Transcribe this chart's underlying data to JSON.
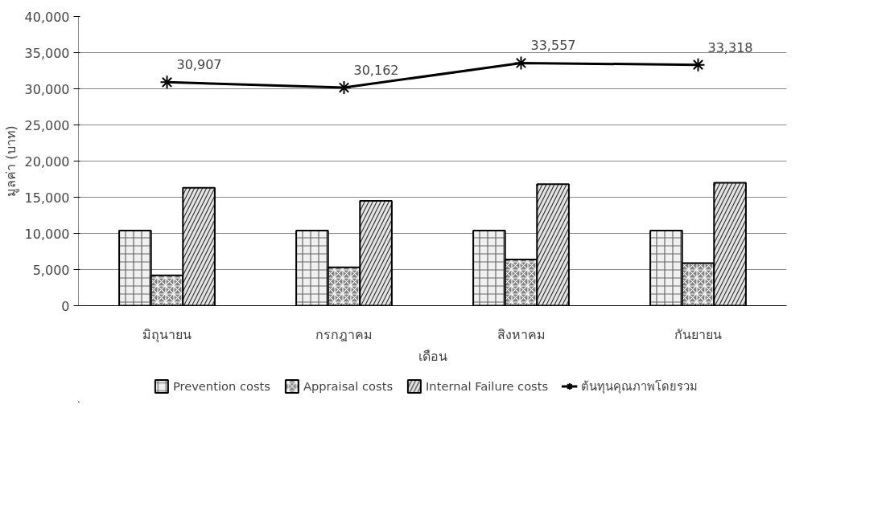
{
  "chart_data": {
    "type": "bar",
    "xlabel": "เดือน",
    "ylabel": "มูลค่า (บาท)",
    "categories": [
      "มิถุนายน",
      "กรกฎาคม",
      "สิงหาคม",
      "กันยายน"
    ],
    "series": [
      {
        "name": "Prevention costs",
        "color": "#f0f0f0",
        "values": [
          10400,
          10400,
          10400,
          10400
        ]
      },
      {
        "name": "Appraisal costs",
        "color": "#808080",
        "values": [
          4200,
          5300,
          6400,
          5900
        ]
      },
      {
        "name": "Internal Failure costs",
        "color": "#e4e4e4",
        "values": [
          16300,
          14500,
          16800,
          17000
        ]
      },
      {
        "name": "ต้นทุนคุณภาพโดยรวม",
        "type": "line",
        "color": "#000000",
        "marker": "cross",
        "values": [
          30907,
          30162,
          33557,
          33318
        ],
        "value_labels": [
          "30,907",
          "30,162",
          "33,557",
          "33,318"
        ]
      }
    ],
    "ylim": [
      0,
      40000
    ],
    "yticks": [
      {
        "value": 0,
        "label": "0"
      },
      {
        "value": 5000,
        "label": "5,000"
      },
      {
        "value": 10000,
        "label": "10,000"
      },
      {
        "value": 15000,
        "label": "15,000"
      },
      {
        "value": 20000,
        "label": "20,000"
      },
      {
        "value": 25000,
        "label": "25,000"
      },
      {
        "value": 30000,
        "label": "30,000"
      },
      {
        "value": 35000,
        "label": "35,000"
      },
      {
        "value": 40000,
        "label": "40,000"
      }
    ],
    "grid": "y",
    "legend": "bottom"
  }
}
